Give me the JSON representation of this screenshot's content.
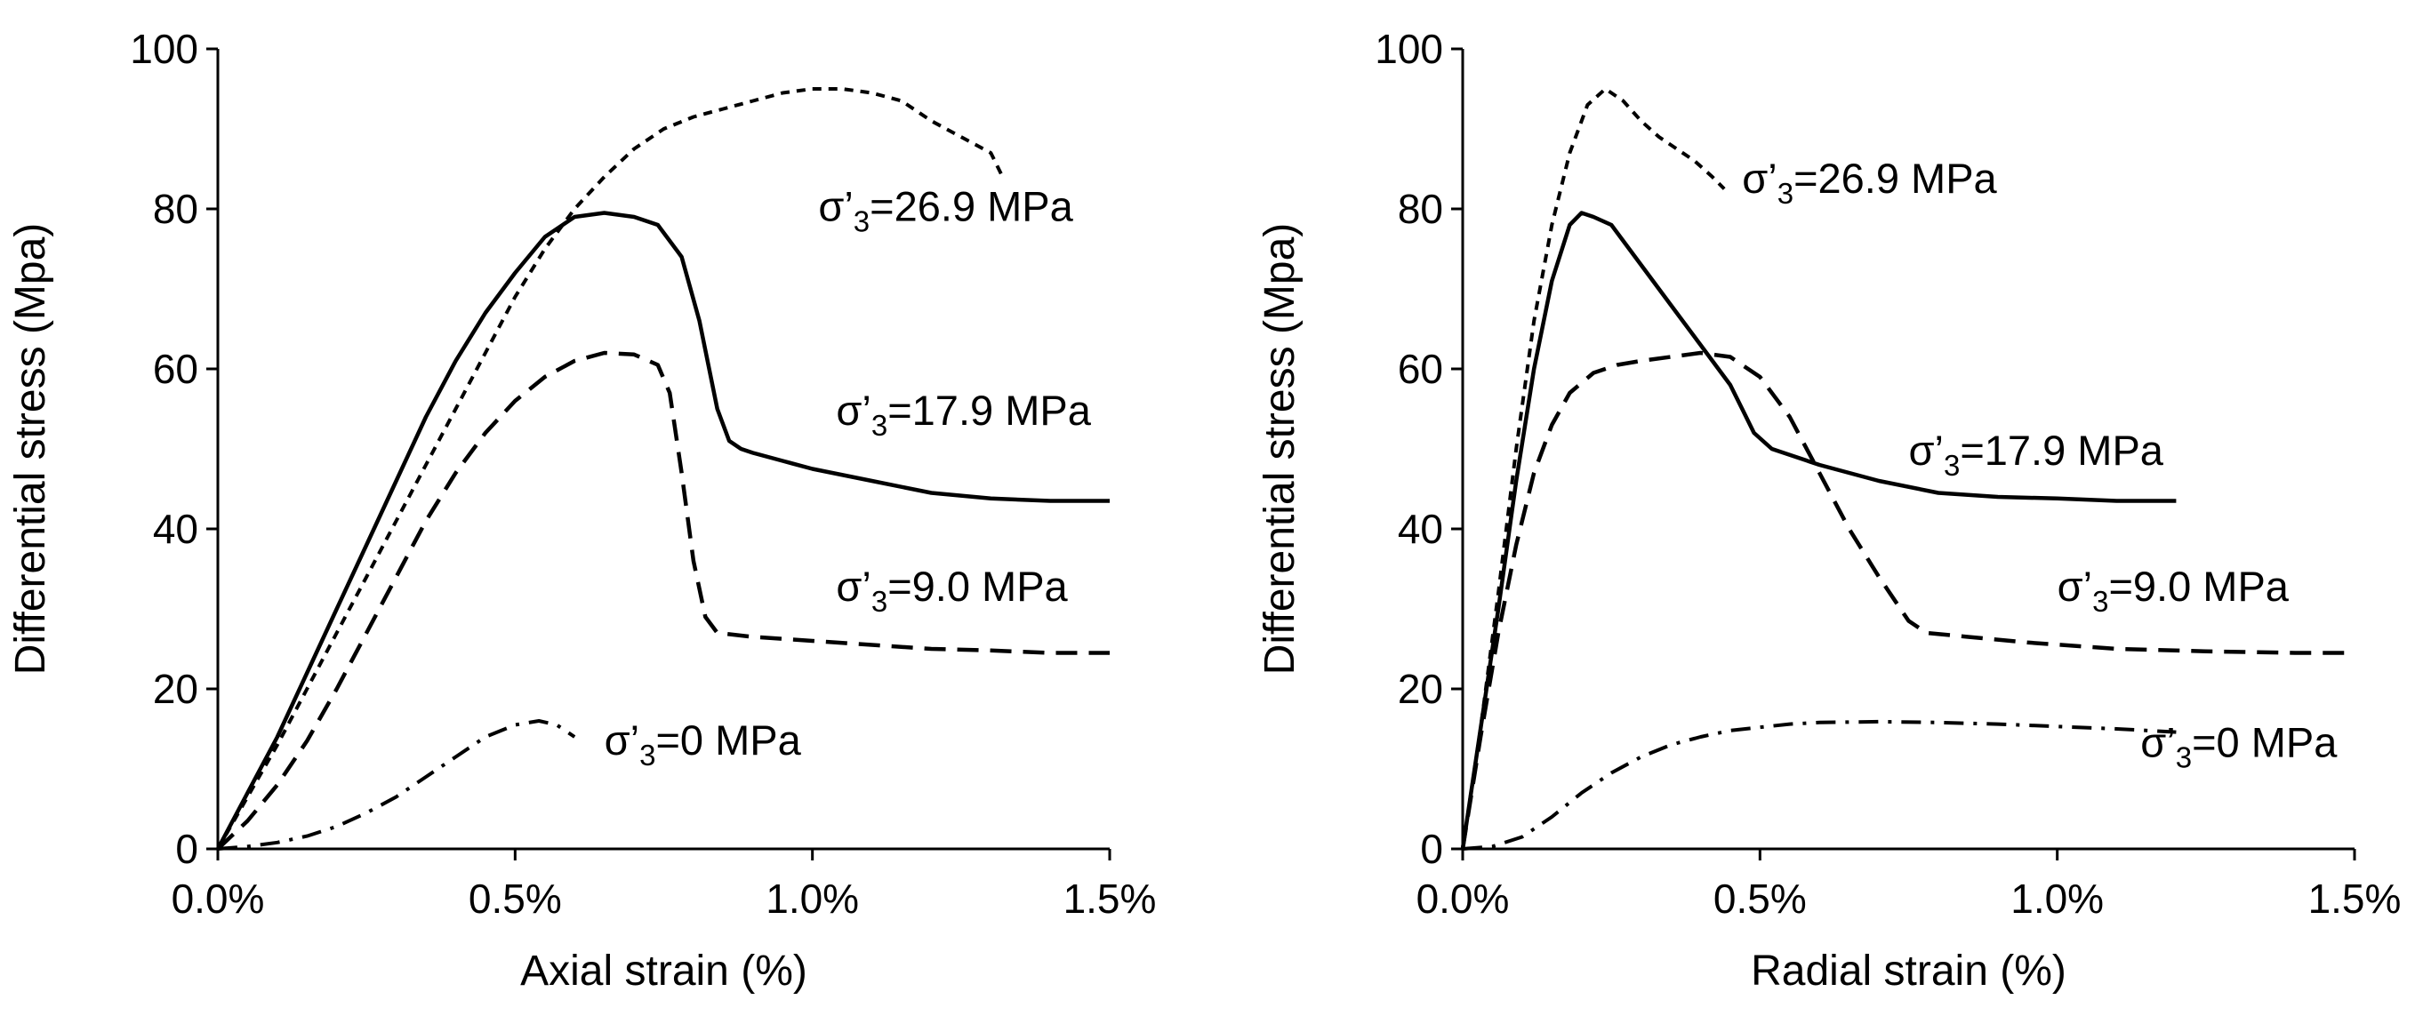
{
  "chart_data": [
    {
      "type": "line",
      "xlabel": "Axial strain (%)",
      "ylabel": "Differential stress (Mpa)",
      "xlim": [
        0,
        1.5
      ],
      "ylim": [
        0,
        100
      ],
      "x_ticks": [
        0,
        0.5,
        1.0,
        1.5
      ],
      "x_tick_labels": [
        "0.0%",
        "0.5%",
        "1.0%",
        "1.5%"
      ],
      "y_ticks": [
        0,
        20,
        40,
        60,
        80,
        100
      ],
      "y_tick_labels": [
        "0",
        "20",
        "40",
        "60",
        "80",
        "100"
      ],
      "grid": false,
      "legend": "none",
      "series": [
        {
          "name": "σ'3=26.9 MPa",
          "line_style": "short-dash",
          "annotation": {
            "main": "σ’",
            "sub": "3",
            "rest": "=26.9 MPa",
            "x": 1.01,
            "y": 78.5
          },
          "x": [
            0,
            0.05,
            0.1,
            0.15,
            0.2,
            0.25,
            0.3,
            0.35,
            0.4,
            0.45,
            0.5,
            0.55,
            0.6,
            0.65,
            0.7,
            0.75,
            0.8,
            0.85,
            0.9,
            0.95,
            1.0,
            1.05,
            1.1,
            1.15,
            1.2,
            1.25,
            1.3,
            1.32
          ],
          "y": [
            0,
            6.5,
            13,
            20,
            27,
            34,
            41,
            48,
            55,
            62,
            69,
            75,
            80,
            84,
            87.5,
            90,
            91.5,
            92.5,
            93.5,
            94.5,
            95,
            95,
            94.5,
            93.5,
            91,
            89,
            87,
            84
          ]
        },
        {
          "name": "σ'3=17.9 MPa",
          "line_style": "solid",
          "annotation": {
            "main": "σ’",
            "sub": "3",
            "rest": "=17.9 MPa",
            "x": 1.04,
            "y": 53
          },
          "x": [
            0,
            0.05,
            0.1,
            0.15,
            0.2,
            0.25,
            0.3,
            0.35,
            0.4,
            0.45,
            0.5,
            0.55,
            0.6,
            0.65,
            0.7,
            0.74,
            0.78,
            0.81,
            0.84,
            0.86,
            0.88,
            0.9,
            0.95,
            1.0,
            1.1,
            1.2,
            1.3,
            1.4,
            1.5
          ],
          "y": [
            0,
            7,
            14,
            22,
            30,
            38,
            46,
            54,
            61,
            67,
            72,
            76.5,
            79,
            79.5,
            79,
            78,
            74,
            66,
            55,
            51,
            50,
            49.5,
            48.5,
            47.5,
            46,
            44.5,
            43.8,
            43.5,
            43.5
          ]
        },
        {
          "name": "σ'3=9.0 MPa",
          "line_style": "dash",
          "annotation": {
            "main": "σ’",
            "sub": "3",
            "rest": "=9.0 MPa",
            "x": 1.04,
            "y": 31
          },
          "x": [
            0,
            0.05,
            0.1,
            0.15,
            0.2,
            0.25,
            0.3,
            0.35,
            0.4,
            0.45,
            0.5,
            0.55,
            0.6,
            0.65,
            0.7,
            0.74,
            0.76,
            0.78,
            0.8,
            0.82,
            0.84,
            0.9,
            1.0,
            1.1,
            1.2,
            1.3,
            1.4,
            1.5
          ],
          "y": [
            0,
            3.5,
            8,
            13.5,
            20,
            27,
            34,
            41,
            47,
            52,
            56,
            59,
            61,
            62,
            61.8,
            60.5,
            57,
            47,
            36,
            29,
            27,
            26.5,
            26,
            25.5,
            25,
            24.8,
            24.5,
            24.5
          ]
        },
        {
          "name": "σ'3=0 MPa",
          "line_style": "dash-dot",
          "annotation": {
            "main": "σ’",
            "sub": "3",
            "rest": "=0 MPa",
            "x": 0.65,
            "y": 11.8
          },
          "x": [
            0,
            0.05,
            0.1,
            0.15,
            0.2,
            0.25,
            0.3,
            0.35,
            0.4,
            0.45,
            0.5,
            0.54,
            0.57,
            0.6
          ],
          "y": [
            0,
            0.3,
            0.8,
            1.6,
            2.8,
            4.5,
            6.5,
            9,
            11.5,
            14,
            15.5,
            16,
            15.5,
            14
          ]
        }
      ]
    },
    {
      "type": "line",
      "xlabel": "Radial strain (%)",
      "ylabel": "Differential stress (Mpa)",
      "xlim": [
        0,
        1.5
      ],
      "ylim": [
        0,
        100
      ],
      "x_ticks": [
        0,
        0.5,
        1.0,
        1.5
      ],
      "x_tick_labels": [
        "0.0%",
        "0.5%",
        "1.0%",
        "1.5%"
      ],
      "y_ticks": [
        0,
        20,
        40,
        60,
        80,
        100
      ],
      "y_tick_labels": [
        "0",
        "20",
        "40",
        "60",
        "80",
        "100"
      ],
      "grid": false,
      "legend": "none",
      "series": [
        {
          "name": "σ'3=26.9 MPa",
          "line_style": "short-dash",
          "annotation": {
            "main": "σ’",
            "sub": "3",
            "rest": "=26.9 MPa",
            "x": 0.47,
            "y": 82
          },
          "x": [
            0,
            0.03,
            0.06,
            0.09,
            0.12,
            0.15,
            0.18,
            0.21,
            0.24,
            0.27,
            0.3,
            0.33,
            0.36,
            0.39,
            0.42,
            0.44
          ],
          "y": [
            0,
            15,
            32,
            50,
            66,
            78,
            87,
            93,
            95,
            93.5,
            91,
            89,
            87.5,
            86,
            84,
            82.5
          ]
        },
        {
          "name": "σ'3=17.9 MPa",
          "line_style": "solid",
          "annotation": {
            "main": "σ’",
            "sub": "3",
            "rest": "=17.9 MPa",
            "x": 0.75,
            "y": 48
          },
          "x": [
            0,
            0.03,
            0.06,
            0.09,
            0.12,
            0.15,
            0.18,
            0.2,
            0.22,
            0.25,
            0.3,
            0.35,
            0.4,
            0.45,
            0.47,
            0.49,
            0.52,
            0.6,
            0.7,
            0.8,
            0.9,
            1.0,
            1.1,
            1.2
          ],
          "y": [
            0,
            15,
            30,
            46,
            60,
            71,
            78,
            79.5,
            79,
            78,
            73,
            68,
            63,
            58,
            55,
            52,
            50,
            48,
            46,
            44.5,
            44,
            43.8,
            43.5,
            43.5
          ]
        },
        {
          "name": "σ'3=9.0 MPa",
          "line_style": "dash",
          "annotation": {
            "main": "σ’",
            "sub": "3",
            "rest": "=9.0 MPa",
            "x": 1.0,
            "y": 31
          },
          "x": [
            0,
            0.03,
            0.06,
            0.09,
            0.12,
            0.15,
            0.18,
            0.22,
            0.26,
            0.3,
            0.35,
            0.4,
            0.45,
            0.5,
            0.55,
            0.6,
            0.65,
            0.7,
            0.75,
            0.78,
            0.85,
            0.95,
            1.1,
            1.25,
            1.4,
            1.5
          ],
          "y": [
            0,
            14,
            27,
            38,
            47,
            53,
            57,
            59.5,
            60.5,
            61,
            61.5,
            62,
            61.5,
            59,
            54,
            47,
            40,
            34,
            28.5,
            27,
            26.5,
            25.8,
            25,
            24.7,
            24.5,
            24.5
          ]
        },
        {
          "name": "σ'3=0 MPa",
          "line_style": "dash-dot",
          "annotation": {
            "main": "σ’",
            "sub": "3",
            "rest": "=0 MPa",
            "x": 1.14,
            "y": 11.5
          },
          "x": [
            0,
            0.05,
            0.1,
            0.15,
            0.2,
            0.25,
            0.3,
            0.35,
            0.4,
            0.45,
            0.5,
            0.55,
            0.6,
            0.7,
            0.8,
            0.9,
            1.0,
            1.1,
            1.2
          ],
          "y": [
            0,
            0.3,
            1.5,
            4,
            7,
            9.5,
            11.5,
            13,
            14,
            14.8,
            15.2,
            15.6,
            15.8,
            15.9,
            15.8,
            15.6,
            15.3,
            15,
            14.6
          ]
        }
      ]
    }
  ]
}
